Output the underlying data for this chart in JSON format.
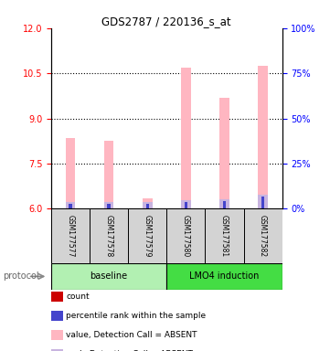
{
  "title": "GDS2787 / 220136_s_at",
  "samples": [
    "GSM177577",
    "GSM177578",
    "GSM177579",
    "GSM177580",
    "GSM177581",
    "GSM177582"
  ],
  "value_bars": [
    8.35,
    8.25,
    6.35,
    10.7,
    9.7,
    10.75
  ],
  "rank_bars": [
    6.22,
    6.22,
    6.22,
    6.28,
    6.32,
    6.48
  ],
  "count_bars": [
    6.06,
    6.06,
    6.06,
    6.06,
    6.06,
    6.06
  ],
  "percentile_bars": [
    6.18,
    6.18,
    6.18,
    6.22,
    6.26,
    6.42
  ],
  "ylim_left": [
    6,
    12
  ],
  "ylim_right": [
    0,
    100
  ],
  "yticks_left": [
    6,
    7.5,
    9,
    10.5,
    12
  ],
  "yticks_right": [
    0,
    25,
    50,
    75,
    100
  ],
  "value_color": "#ffb6c1",
  "rank_color": "#c8b4e0",
  "count_color": "#cc0000",
  "percentile_color": "#4444cc",
  "background_color": "#ffffff",
  "sample_box_color": "#d3d3d3",
  "baseline_color": "#b2f0b2",
  "lmo4_color": "#44dd44",
  "legend_items": [
    {
      "color": "#cc0000",
      "label": "count"
    },
    {
      "color": "#4444cc",
      "label": "percentile rank within the sample"
    },
    {
      "color": "#ffb6c1",
      "label": "value, Detection Call = ABSENT"
    },
    {
      "color": "#c8b4e0",
      "label": "rank, Detection Call = ABSENT"
    }
  ]
}
